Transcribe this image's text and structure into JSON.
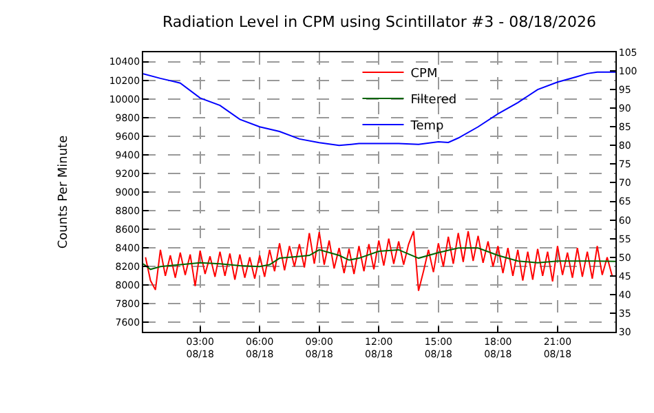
{
  "chart_data": {
    "type": "line",
    "title": "Radiation Level in CPM using Scintillator #3 - 08/18/2026",
    "ylabel": "Counts Per Minute",
    "xlim": [
      "2026-08-18T00:08",
      "2026-08-18T23:55"
    ],
    "xticks": [
      {
        "value": "2026-08-18T03:00",
        "label": "03:00\n08/18"
      },
      {
        "value": "2026-08-18T06:00",
        "label": "06:00\n08/18"
      },
      {
        "value": "2026-08-18T09:00",
        "label": "09:00\n08/18"
      },
      {
        "value": "2026-08-18T12:00",
        "label": "12:00\n08/18"
      },
      {
        "value": "2026-08-18T15:00",
        "label": "15:00\n08/18"
      },
      {
        "value": "2026-08-18T18:00",
        "label": "18:00\n08/18"
      },
      {
        "value": "2026-08-18T21:00",
        "label": "21:00\n08/18"
      }
    ],
    "ylim": [
      7500,
      10500
    ],
    "yticks": [
      7600,
      7800,
      8000,
      8200,
      8400,
      8600,
      8800,
      9000,
      9200,
      9400,
      9600,
      9800,
      10000,
      10200,
      10400
    ],
    "y2lim": [
      30,
      105
    ],
    "y2ticks": [
      30,
      35,
      40,
      45,
      50,
      55,
      60,
      65,
      70,
      75,
      80,
      85,
      90,
      95,
      100,
      105
    ],
    "grid": true,
    "legend": "top right",
    "marker": "none",
    "line_style": "solid",
    "series": [
      {
        "name": "CPM",
        "color": "#ff0000",
        "x": [
          "2026-08-18T00:15",
          "2026-08-18T00:30",
          "2026-08-18T00:45",
          "2026-08-18T01:00",
          "2026-08-18T01:15",
          "2026-08-18T01:30",
          "2026-08-18T01:45",
          "2026-08-18T02:00",
          "2026-08-18T02:15",
          "2026-08-18T02:30",
          "2026-08-18T02:45",
          "2026-08-18T03:00",
          "2026-08-18T03:15",
          "2026-08-18T03:30",
          "2026-08-18T03:45",
          "2026-08-18T04:00",
          "2026-08-18T04:15",
          "2026-08-18T04:30",
          "2026-08-18T04:45",
          "2026-08-18T05:00",
          "2026-08-18T05:15",
          "2026-08-18T05:30",
          "2026-08-18T05:45",
          "2026-08-18T06:00",
          "2026-08-18T06:15",
          "2026-08-18T06:30",
          "2026-08-18T06:45",
          "2026-08-18T07:00",
          "2026-08-18T07:15",
          "2026-08-18T07:30",
          "2026-08-18T07:45",
          "2026-08-18T08:00",
          "2026-08-18T08:15",
          "2026-08-18T08:30",
          "2026-08-18T08:45",
          "2026-08-18T09:00",
          "2026-08-18T09:15",
          "2026-08-18T09:30",
          "2026-08-18T09:45",
          "2026-08-18T10:00",
          "2026-08-18T10:15",
          "2026-08-18T10:30",
          "2026-08-18T10:45",
          "2026-08-18T11:00",
          "2026-08-18T11:15",
          "2026-08-18T11:30",
          "2026-08-18T11:45",
          "2026-08-18T12:00",
          "2026-08-18T12:15",
          "2026-08-18T12:30",
          "2026-08-18T12:45",
          "2026-08-18T13:00",
          "2026-08-18T13:15",
          "2026-08-18T13:30",
          "2026-08-18T13:45",
          "2026-08-18T14:00",
          "2026-08-18T14:15",
          "2026-08-18T14:30",
          "2026-08-18T14:45",
          "2026-08-18T15:00",
          "2026-08-18T15:15",
          "2026-08-18T15:30",
          "2026-08-18T15:45",
          "2026-08-18T16:00",
          "2026-08-18T16:15",
          "2026-08-18T16:30",
          "2026-08-18T16:45",
          "2026-08-18T17:00",
          "2026-08-18T17:15",
          "2026-08-18T17:30",
          "2026-08-18T17:45",
          "2026-08-18T18:00",
          "2026-08-18T18:15",
          "2026-08-18T18:30",
          "2026-08-18T18:45",
          "2026-08-18T19:00",
          "2026-08-18T19:15",
          "2026-08-18T19:30",
          "2026-08-18T19:45",
          "2026-08-18T20:00",
          "2026-08-18T20:15",
          "2026-08-18T20:30",
          "2026-08-18T20:45",
          "2026-08-18T21:00",
          "2026-08-18T21:15",
          "2026-08-18T21:30",
          "2026-08-18T21:45",
          "2026-08-18T22:00",
          "2026-08-18T22:15",
          "2026-08-18T22:30",
          "2026-08-18T22:45",
          "2026-08-18T23:00",
          "2026-08-18T23:15",
          "2026-08-18T23:30",
          "2026-08-18T23:45"
        ],
        "values": [
          8300,
          8050,
          7950,
          8380,
          8100,
          8320,
          8080,
          8350,
          8110,
          8330,
          7990,
          8370,
          8120,
          8310,
          8090,
          8360,
          8100,
          8340,
          8060,
          8330,
          8080,
          8300,
          8070,
          8320,
          8090,
          8380,
          8150,
          8450,
          8160,
          8420,
          8200,
          8440,
          8190,
          8560,
          8230,
          8570,
          8220,
          8480,
          8180,
          8400,
          8130,
          8390,
          8120,
          8420,
          8150,
          8440,
          8170,
          8480,
          8210,
          8500,
          8230,
          8470,
          8220,
          8440,
          8580,
          7940,
          8150,
          8380,
          8140,
          8450,
          8200,
          8520,
          8230,
          8560,
          8250,
          8580,
          8260,
          8530,
          8240,
          8470,
          8200,
          8420,
          8130,
          8400,
          8100,
          8380,
          8050,
          8360,
          8060,
          8390,
          8100,
          8360,
          8040,
          8420,
          8110,
          8350,
          8080,
          8400,
          8090,
          8360,
          8070,
          8420,
          8110,
          8300,
          8100
        ]
      },
      {
        "name": "Filtered",
        "color": "#006400",
        "x": [
          "2026-08-18T00:08",
          "2026-08-18T00:30",
          "2026-08-18T01:00",
          "2026-08-18T02:00",
          "2026-08-18T03:00",
          "2026-08-18T04:00",
          "2026-08-18T05:00",
          "2026-08-18T06:00",
          "2026-08-18T06:30",
          "2026-08-18T07:00",
          "2026-08-18T08:00",
          "2026-08-18T08:30",
          "2026-08-18T09:00",
          "2026-08-18T10:00",
          "2026-08-18T10:30",
          "2026-08-18T11:00",
          "2026-08-18T12:00",
          "2026-08-18T13:00",
          "2026-08-18T14:00",
          "2026-08-18T15:00",
          "2026-08-18T16:00",
          "2026-08-18T17:00",
          "2026-08-18T18:00",
          "2026-08-18T19:00",
          "2026-08-18T20:00",
          "2026-08-18T21:00",
          "2026-08-18T22:00",
          "2026-08-18T23:00",
          "2026-08-18T23:55"
        ],
        "values": [
          8230,
          8170,
          8200,
          8220,
          8240,
          8230,
          8210,
          8200,
          8220,
          8290,
          8310,
          8320,
          8380,
          8320,
          8270,
          8290,
          8365,
          8380,
          8290,
          8350,
          8400,
          8400,
          8320,
          8260,
          8240,
          8260,
          8260,
          8260,
          8255
        ]
      },
      {
        "name": "Temp",
        "color": "#0000ff",
        "axis": "y2",
        "x": [
          "2026-08-18T00:08",
          "2026-08-18T01:00",
          "2026-08-18T02:00",
          "2026-08-18T03:00",
          "2026-08-18T04:00",
          "2026-08-18T05:00",
          "2026-08-18T06:00",
          "2026-08-18T07:00",
          "2026-08-18T08:00",
          "2026-08-18T09:00",
          "2026-08-18T10:00",
          "2026-08-18T11:00",
          "2026-08-18T12:00",
          "2026-08-18T13:00",
          "2026-08-18T14:00",
          "2026-08-18T15:00",
          "2026-08-18T15:30",
          "2026-08-18T16:00",
          "2026-08-18T17:00",
          "2026-08-18T18:00",
          "2026-08-18T19:00",
          "2026-08-18T20:00",
          "2026-08-18T21:00",
          "2026-08-18T22:00",
          "2026-08-18T22:30",
          "2026-08-18T23:00",
          "2026-08-18T23:55"
        ],
        "values": [
          99.25,
          98,
          96.75,
          92.75,
          90.75,
          87,
          85,
          83.75,
          81.75,
          80.75,
          80,
          80.5,
          80.5,
          80.5,
          80.3,
          81,
          80.8,
          82,
          85,
          88.5,
          91.5,
          95,
          97,
          98.5,
          99.3,
          99.7,
          99.7
        ]
      }
    ]
  }
}
